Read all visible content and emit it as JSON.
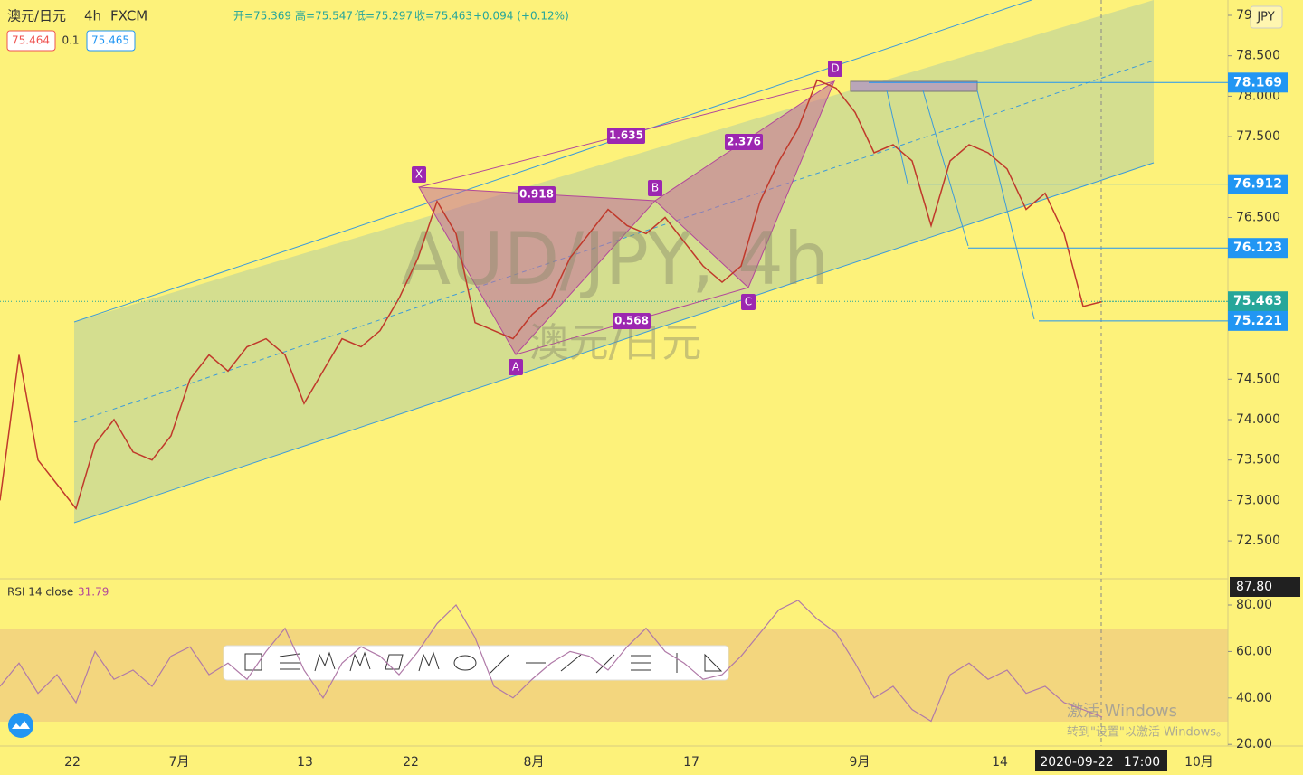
{
  "header": {
    "symbol": "澳元/日元",
    "interval": "4h",
    "source": "FXCM",
    "open": "开=75.369",
    "high": "高=75.547",
    "low": "低=75.297",
    "close": "收=75.463",
    "change": "+0.094 (+0.12%)",
    "bid": "75.464",
    "spread": "0.1",
    "ask": "75.465"
  },
  "currency": "JPY",
  "watermark": {
    "symbol": "AUD/JPY, 4h",
    "name": "澳元/日元"
  },
  "price_axis": {
    "ticks": [
      {
        "value": 79,
        "label": "79"
      },
      {
        "value": 78.5,
        "label": "78.500"
      },
      {
        "value": 78,
        "label": "78.000"
      },
      {
        "value": 77.5,
        "label": "77.500"
      },
      {
        "value": 76.5,
        "label": "76.500"
      },
      {
        "value": 74.5,
        "label": "74.500"
      },
      {
        "value": 74,
        "label": "74.000"
      },
      {
        "value": 73.5,
        "label": "73.500"
      },
      {
        "value": 73,
        "label": "73.000"
      },
      {
        "value": 72.5,
        "label": "72.500"
      }
    ]
  },
  "price_levels": [
    78.169,
    76.912,
    76.123,
    75.463,
    75.221
  ],
  "price_path": [
    73.0,
    74.8,
    73.5,
    73.2,
    72.9,
    73.7,
    74.0,
    73.6,
    73.5,
    73.8,
    74.5,
    74.8,
    74.6,
    74.9,
    75.0,
    74.8,
    74.2,
    74.6,
    75.0,
    74.9,
    75.1,
    75.5,
    76.0,
    76.7,
    76.3,
    75.2,
    75.1,
    75.0,
    75.3,
    75.5,
    76.0,
    76.3,
    76.6,
    76.4,
    76.3,
    76.5,
    76.2,
    75.9,
    75.7,
    75.9,
    76.7,
    77.2,
    77.6,
    78.2,
    78.1,
    77.8,
    77.3,
    77.4,
    77.2,
    76.4,
    77.2,
    77.4,
    77.3,
    77.1,
    76.6,
    76.8,
    76.3,
    75.4,
    75.46
  ],
  "pattern": {
    "points": [
      "X",
      "A",
      "B",
      "C",
      "D"
    ],
    "ratios": [
      "1.635",
      "0.918",
      "2.376",
      "0.568"
    ]
  },
  "rsi": {
    "label": "RSI 14 close",
    "value": "31.79",
    "high_label": "87.80",
    "ticks": [
      {
        "value": 80,
        "label": "80.00"
      },
      {
        "value": 60,
        "label": "60.00"
      },
      {
        "value": 40,
        "label": "40.00"
      },
      {
        "value": 20,
        "label": "20.00"
      }
    ],
    "path": [
      45,
      55,
      42,
      50,
      38,
      60,
      48,
      52,
      45,
      58,
      62,
      50,
      55,
      48,
      60,
      70,
      52,
      40,
      55,
      62,
      58,
      50,
      60,
      72,
      80,
      66,
      45,
      40,
      48,
      55,
      60,
      58,
      52,
      62,
      70,
      60,
      55,
      48,
      50,
      58,
      68,
      78,
      82,
      74,
      68,
      55,
      40,
      45,
      35,
      30,
      50,
      55,
      48,
      52,
      42,
      45,
      38,
      35,
      31.79
    ]
  },
  "time_axis": [
    "22",
    "7月",
    "13",
    "22",
    "8月",
    "17",
    "9月",
    "14",
    "2020-09-22",
    "17:00",
    "10月"
  ],
  "windows": {
    "title": "激活 Windows",
    "hint": "转到\"设置\"以激活 Windows。"
  }
}
